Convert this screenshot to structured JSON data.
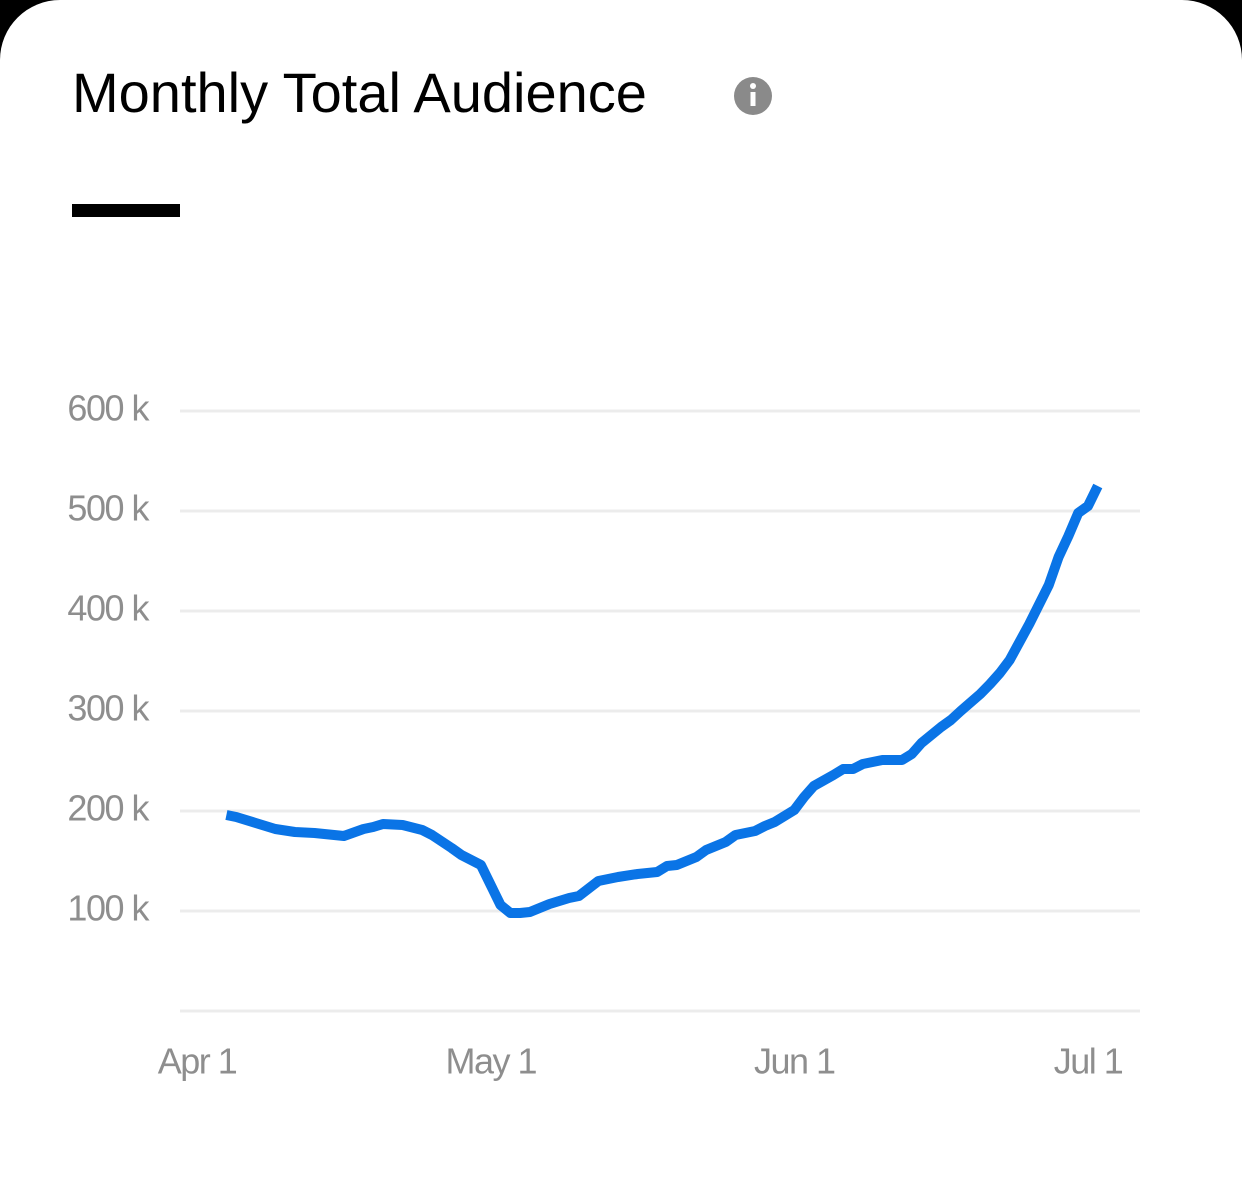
{
  "chart_data": {
    "type": "line",
    "title": "Monthly Total Audience",
    "x": [
      "Apr 4",
      "Apr 5",
      "Apr 7",
      "Apr 9",
      "Apr 11",
      "Apr 13",
      "Apr 15",
      "Apr 16",
      "Apr 18",
      "Apr 19",
      "Apr 20",
      "Apr 22",
      "Apr 24",
      "Apr 25",
      "Apr 27",
      "Apr 28",
      "Apr 30",
      "May 1",
      "May 2",
      "May 3",
      "May 4",
      "May 5",
      "May 7",
      "May 9",
      "May 10",
      "May 12",
      "May 14",
      "May 16",
      "May 18",
      "May 19",
      "May 20",
      "May 22",
      "May 23",
      "May 25",
      "May 26",
      "May 28",
      "May 29",
      "May 30",
      "Jun 1",
      "Jun 2",
      "Jun 3",
      "Jun 5",
      "Jun 6",
      "Jun 7",
      "Jun 8",
      "Jun 10",
      "Jun 11",
      "Jun 12",
      "Jun 13",
      "Jun 14",
      "Jun 16",
      "Jun 17",
      "Jun 18",
      "Jun 20",
      "Jun 21",
      "Jun 22",
      "Jun 23",
      "Jun 25",
      "Jun 27",
      "Jun 28",
      "Jun 29",
      "Jun 30",
      "Jul 1",
      "Jul 2"
    ],
    "values": [
      196000,
      194000,
      188000,
      182000,
      179000,
      178000,
      176000,
      175000,
      182000,
      184000,
      187000,
      186000,
      181000,
      176000,
      163000,
      156000,
      146000,
      126000,
      106000,
      98000,
      98000,
      99000,
      107000,
      113000,
      115000,
      130000,
      134000,
      137000,
      139000,
      145000,
      146000,
      154000,
      161000,
      169000,
      176000,
      180000,
      185000,
      189000,
      201000,
      214000,
      225000,
      236000,
      242000,
      242000,
      247000,
      251000,
      251000,
      251000,
      257000,
      268000,
      284000,
      291000,
      300000,
      317000,
      327000,
      338000,
      351000,
      387000,
      426000,
      454000,
      475000,
      498000,
      505000,
      525000
    ],
    "color": "#0a74e6",
    "xlim": [
      "Apr 1",
      "Jul 1"
    ],
    "xticks": [
      "Apr 1",
      "May 1",
      "Jun 1",
      "Jul 1"
    ],
    "ylim": [
      0,
      600000
    ],
    "yticks": [
      {
        "value": 100000,
        "label": "100 k"
      },
      {
        "value": 200000,
        "label": "200 k"
      },
      {
        "value": 300000,
        "label": "300 k"
      },
      {
        "value": 400000,
        "label": "400 k"
      },
      {
        "value": 500000,
        "label": "500 k"
      },
      {
        "value": 600000,
        "label": "600 k"
      }
    ],
    "grid": true
  }
}
